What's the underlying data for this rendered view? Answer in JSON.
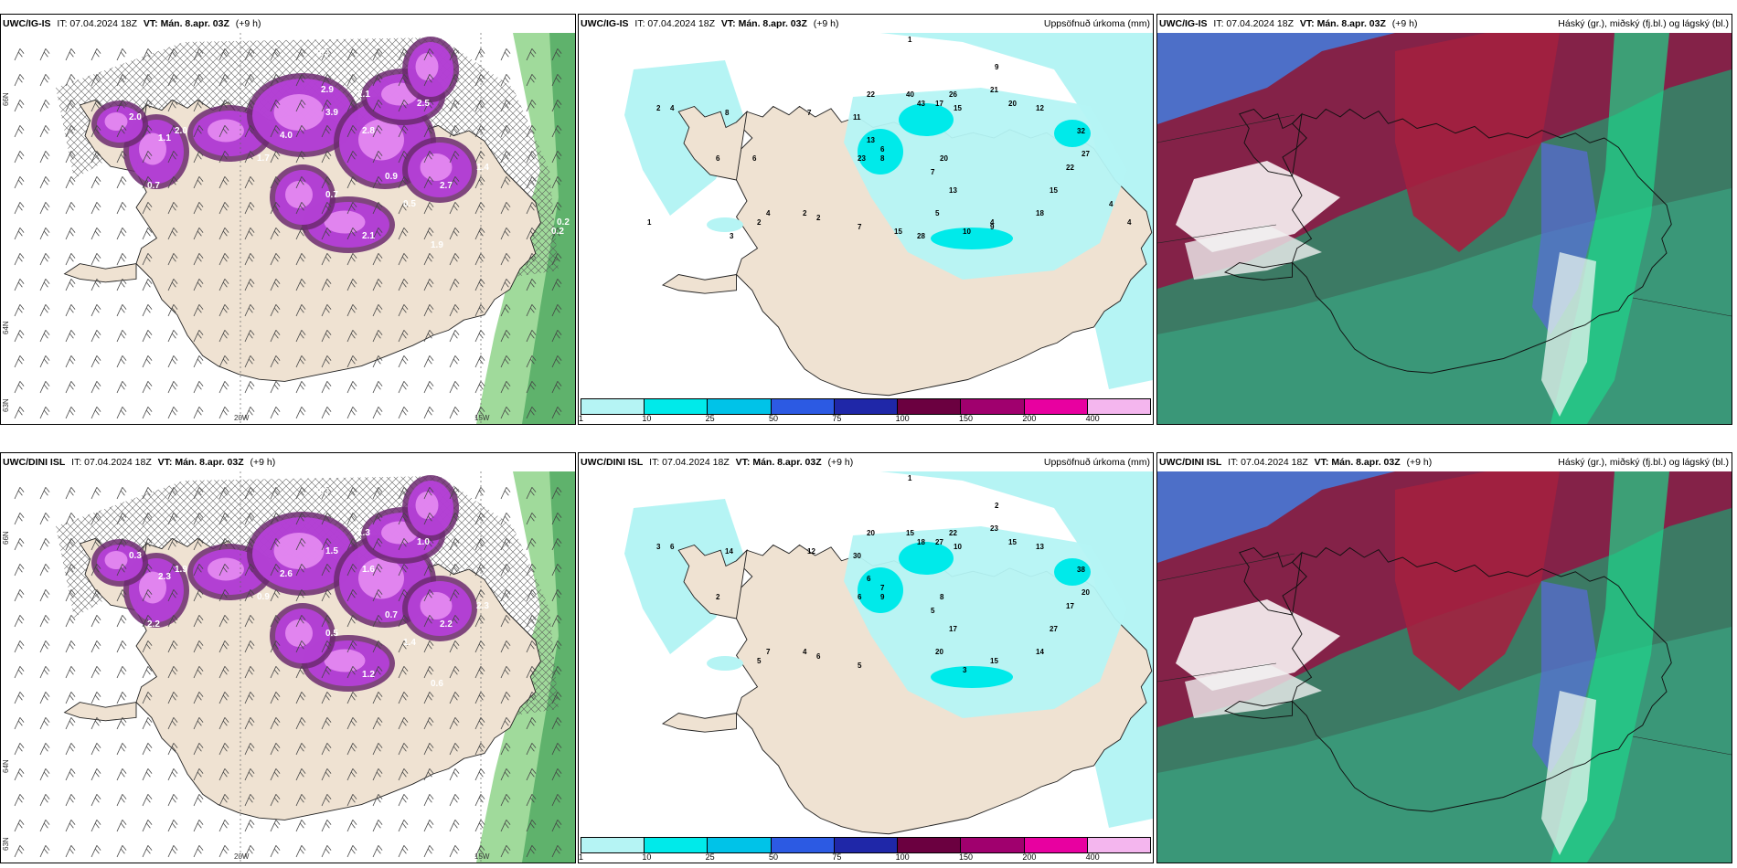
{
  "panels": [
    {
      "id": "p1",
      "model": "UWC/IG-IS",
      "it": "IT: 07.04.2024 18Z",
      "vt_key": "VT:",
      "vt_val": "Mán. 8.apr. 03Z",
      "lead": "(+9 h)",
      "right": "",
      "type": "wind",
      "lon_labels": [
        "20W",
        "15W"
      ],
      "lat_labels": [
        "66N",
        "64N",
        "63N"
      ],
      "values": [
        "0.3",
        "2.0",
        "2.1",
        "1.1",
        "0.7",
        "3.9",
        "2.8",
        "2.5",
        "4.0",
        "1.7",
        "2.7",
        "2.0",
        "0.9",
        "0.5",
        "1.9",
        "2.1",
        "1.4",
        "0.7",
        "2.9",
        "0.2",
        "0.2"
      ]
    },
    {
      "id": "p2",
      "model": "UWC/IG-IS",
      "it": "IT: 07.04.2024 18Z",
      "vt_key": "VT:",
      "vt_val": "Mán. 8.apr. 03Z",
      "lead": "(+9 h)",
      "right": "Uppsöfnuð úrkoma (mm)",
      "type": "precip",
      "values": [
        "1",
        "9",
        "2",
        "4",
        "8",
        "7",
        "11",
        "22",
        "40",
        "43",
        "26",
        "15",
        "17",
        "21",
        "20",
        "12",
        "32",
        "27",
        "22",
        "15",
        "18",
        "20",
        "13",
        "23",
        "8",
        "6",
        "7",
        "13",
        "5",
        "4",
        "10",
        "6",
        "4",
        "2",
        "2",
        "2",
        "7",
        "15",
        "28",
        "9",
        "4",
        "4",
        "1",
        "3",
        "6"
      ]
    },
    {
      "id": "p3",
      "model": "UWC/IG-IS",
      "it": "IT: 07.04.2024 18Z",
      "vt_key": "VT:",
      "vt_val": "Mán. 8.apr. 03Z",
      "lead": "(+9 h)",
      "right": "Háský (gr.), miðský (fj.bl.) og lágský (bl.)",
      "type": "cloud"
    },
    {
      "id": "p4",
      "model": "UWC/DINI ISL",
      "it": "IT: 07.04.2024 18Z",
      "vt_key": "VT:",
      "vt_val": "Mán. 8.apr. 03Z",
      "lead": "(+9 h)",
      "right": "",
      "type": "wind",
      "lon_labels": [
        "20W",
        "15W"
      ],
      "lat_labels": [
        "66N",
        "64N",
        "63N"
      ],
      "values": [
        "0.3",
        "0.3",
        "1.3",
        "2.3",
        "2.2",
        "1.5",
        "1.6",
        "1.0",
        "2.6",
        "0.9",
        "2.2",
        "1.9",
        "0.7",
        "1.4",
        "0.6",
        "1.2",
        "2.3",
        "0.5"
      ]
    },
    {
      "id": "p5",
      "model": "UWC/DINI ISL",
      "it": "IT: 07.04.2024 18Z",
      "vt_key": "VT:",
      "vt_val": "Mán. 8.apr. 03Z",
      "lead": "(+9 h)",
      "right": "Uppsöfnuð úrkoma (mm)",
      "type": "precip",
      "values": [
        "1",
        "2",
        "3",
        "6",
        "14",
        "12",
        "30",
        "20",
        "15",
        "18",
        "22",
        "10",
        "27",
        "23",
        "15",
        "13",
        "38",
        "20",
        "17",
        "27",
        "14",
        "8",
        "6",
        "6",
        "9",
        "7",
        "5",
        "17",
        "20",
        "15",
        "3",
        "2",
        "7",
        "5",
        "4",
        "6",
        "5"
      ]
    },
    {
      "id": "p6",
      "model": "UWC/DINI ISL",
      "it": "IT: 07.04.2024 18Z",
      "vt_key": "VT:",
      "vt_val": "Mán. 8.apr. 03Z",
      "lead": "(+9 h)",
      "right": "Háský (gr.), miðský (fj.bl.) og lágský (bl.)",
      "type": "cloud"
    }
  ],
  "colorbar": {
    "labels": [
      "1",
      "10",
      "25",
      "50",
      "75",
      "100",
      "150",
      "200",
      "400"
    ],
    "colors": [
      "#b5f4f4",
      "#00eaea",
      "#00c3e8",
      "#2c5ae3",
      "#1f27a8",
      "#6b0040",
      "#a0006e",
      "#e800a0",
      "#f4b6ee"
    ]
  },
  "colors": {
    "land": "#efe2d2",
    "sea": "#ffffff",
    "precip_purple": "#b540d8",
    "precip_dark": "#6b2a6e",
    "green_sea": "#4fa860"
  }
}
